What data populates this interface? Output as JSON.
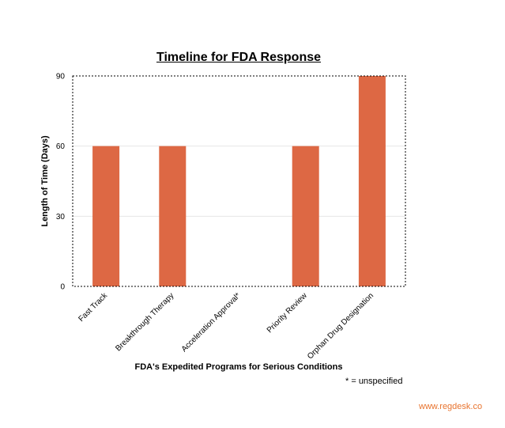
{
  "chart_data": {
    "type": "bar",
    "title": "Timeline for FDA Response",
    "xlabel": "FDA's Expedited Programs for Serious Conditions",
    "ylabel": "Length of Time (Days)",
    "categories": [
      "Fast Track",
      "Breakthrough Therapy",
      "Acceleration Approval*",
      "Priority Review",
      "Orphan Drug Designation"
    ],
    "values": [
      60,
      60,
      0,
      60,
      90
    ],
    "ylim": [
      0,
      90
    ],
    "yticks": [
      0,
      30,
      60,
      90
    ],
    "grid": true,
    "bar_color": "#dd6844",
    "legend": "none"
  },
  "footnote": "* = unspecified",
  "watermark": "www.regdesk.co"
}
